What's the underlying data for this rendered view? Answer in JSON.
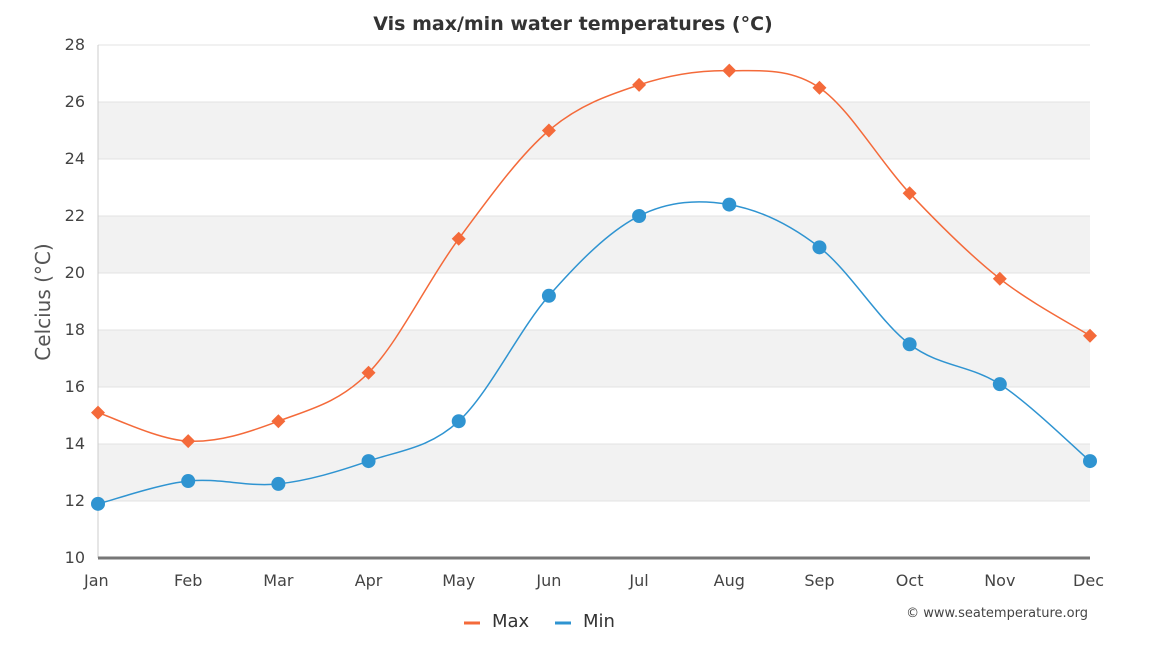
{
  "chart_data": {
    "type": "line",
    "title": "Vis max/min water temperatures (°C)",
    "ylabel": "Celcius (°C)",
    "xlabel": "",
    "categories": [
      "Jan",
      "Feb",
      "Mar",
      "Apr",
      "May",
      "Jun",
      "Jul",
      "Aug",
      "Sep",
      "Oct",
      "Nov",
      "Dec"
    ],
    "ylim": [
      10,
      28
    ],
    "yticks": [
      10,
      12,
      14,
      16,
      18,
      20,
      22,
      24,
      26,
      28
    ],
    "grid": "alternating horizontal bands",
    "legend_position": "bottom-center",
    "series": [
      {
        "name": "Max",
        "color": "#f46a3a",
        "marker": "diamond",
        "values": [
          15.1,
          14.1,
          14.8,
          16.5,
          21.2,
          25.0,
          26.6,
          27.1,
          26.5,
          22.8,
          19.8,
          17.8
        ]
      },
      {
        "name": "Min",
        "color": "#2f94d1",
        "marker": "circle",
        "values": [
          11.9,
          12.7,
          12.6,
          13.4,
          14.8,
          19.2,
          22.0,
          22.4,
          20.9,
          17.5,
          16.1,
          13.4
        ]
      }
    ],
    "credit": "© www.seatemperature.org"
  }
}
